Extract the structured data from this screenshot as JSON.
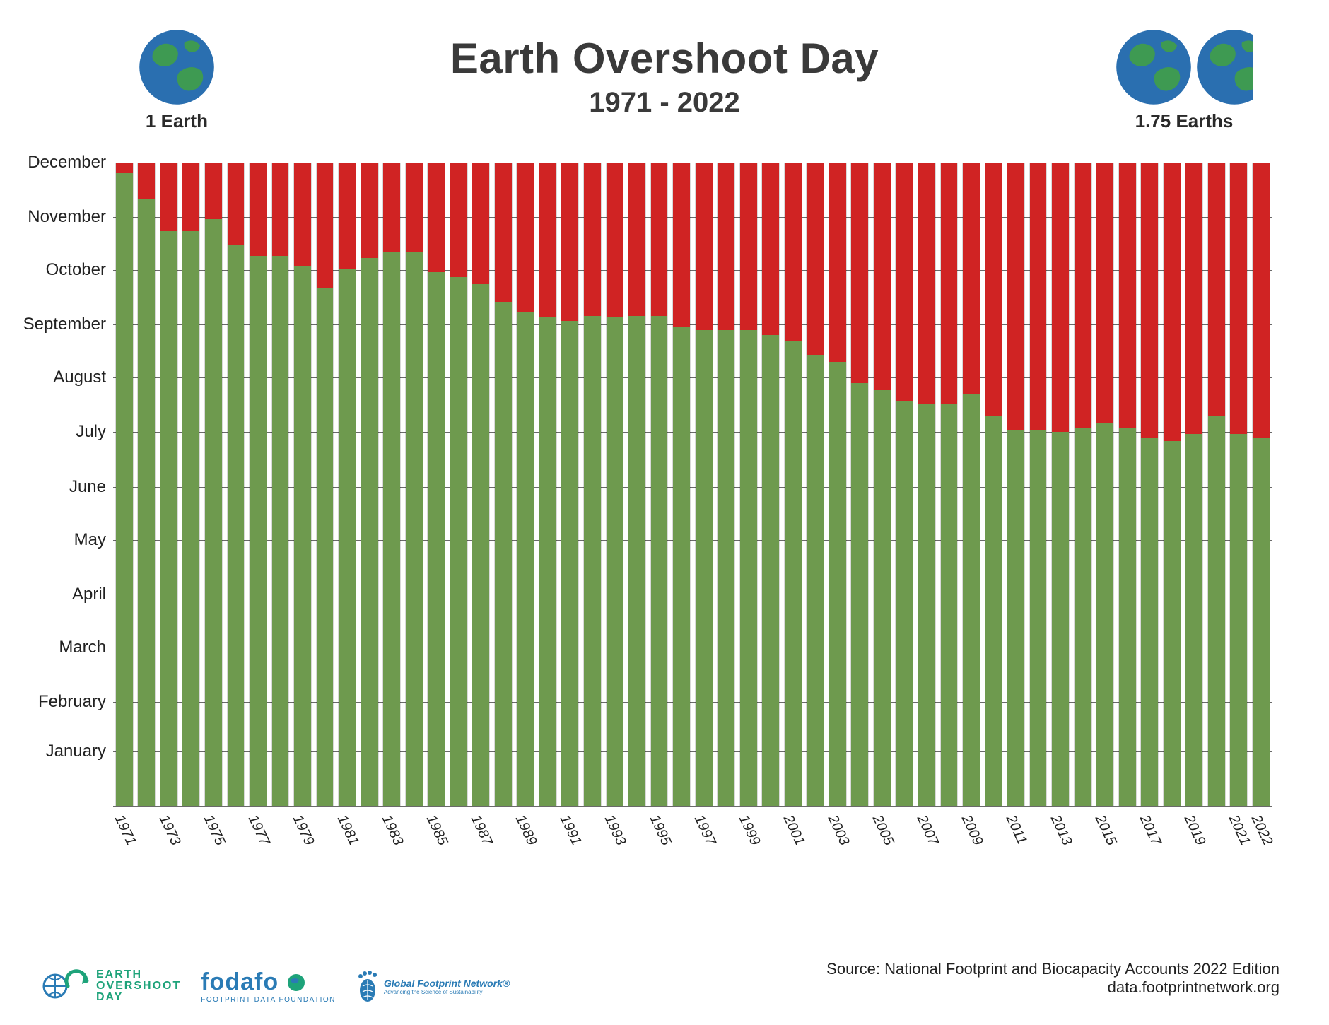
{
  "title": "Earth Overshoot Day",
  "subtitle": "1971 - 2022",
  "title_color": "#3a3a3a",
  "title_fontsize_main": 60,
  "title_fontsize_sub": 40,
  "left_earth_label": "1 Earth",
  "right_earth_label": "1.75 Earths",
  "earth_label_fontsize": 26,
  "globe_colors": {
    "ocean": "#2a6fb0",
    "land": "#3e9a52"
  },
  "chart": {
    "type": "stacked-bar",
    "background_color": "#ffffff",
    "grid_color": "#6a6a6a",
    "bar_green": "#6e9a4e",
    "bar_red": "#d02323",
    "bar_width_ratio": 0.82,
    "y_months": [
      "January",
      "February",
      "March",
      "April",
      "May",
      "June",
      "July",
      "August",
      "September",
      "October",
      "November",
      "December"
    ],
    "y_label_fontsize": 24,
    "x_label_fontsize": 20,
    "x_label_rotation_deg": 65,
    "x_tick_step": 2,
    "x_extra_ticks": [
      2022
    ],
    "years": [
      1971,
      1972,
      1973,
      1974,
      1975,
      1976,
      1977,
      1978,
      1979,
      1980,
      1981,
      1982,
      1983,
      1984,
      1985,
      1986,
      1987,
      1988,
      1989,
      1990,
      1991,
      1992,
      1993,
      1994,
      1995,
      1996,
      1997,
      1998,
      1999,
      2000,
      2001,
      2002,
      2003,
      2004,
      2005,
      2006,
      2007,
      2008,
      2009,
      2010,
      2011,
      2012,
      2013,
      2014,
      2015,
      2016,
      2017,
      2018,
      2019,
      2020,
      2021,
      2022
    ],
    "day_of_year": [
      359,
      344,
      326,
      326,
      333,
      318,
      312,
      312,
      306,
      294,
      305,
      311,
      314,
      314,
      303,
      300,
      296,
      286,
      280,
      277,
      275,
      278,
      277,
      278,
      278,
      272,
      270,
      270,
      270,
      267,
      264,
      256,
      252,
      240,
      236,
      230,
      228,
      228,
      234,
      221,
      213,
      213,
      212,
      214,
      217,
      214,
      209,
      207,
      211,
      221,
      211,
      209
    ],
    "ylim_days": [
      0,
      365
    ]
  },
  "footer": {
    "source_line1": "Source: National Footprint and Biocapacity Accounts 2022 Edition",
    "source_line2": "data.footprintnetwork.org",
    "source_fontsize": 22,
    "logos": {
      "eod": {
        "line1": "EARTH",
        "line2": "OVERSHOOT",
        "line3": "DAY",
        "color": "#1ea37a"
      },
      "fodafo": {
        "big": "fodafo",
        "small": "FOOTPRINT DATA FOUNDATION",
        "color": "#2a7bb5"
      },
      "gfn": {
        "line1": "Global Footprint Network®",
        "line2": "Advancing the Science of Sustainability",
        "color": "#2a7bb5"
      }
    }
  }
}
